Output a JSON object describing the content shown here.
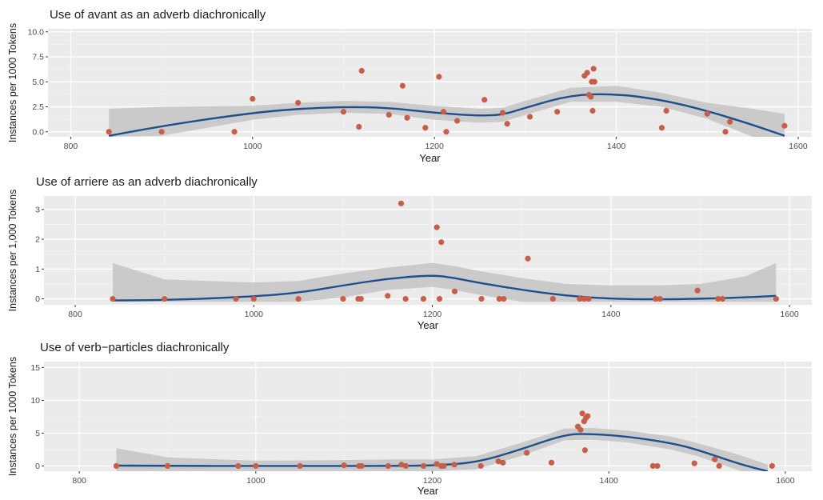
{
  "chart_data": [
    {
      "type": "scatter",
      "title": "Use of avant as an adverb diachronically",
      "xlabel": "Year",
      "ylabel": "Instances per 1000 Tokens",
      "xlim": [
        775,
        1615
      ],
      "ylim": [
        -0.5,
        10.3
      ],
      "xticks": [
        800,
        1000,
        1200,
        1400,
        1600
      ],
      "yticks": [
        0,
        2.5,
        5,
        7.5,
        10
      ],
      "ytick_labels": [
        "0.0",
        "2.5",
        "5.0",
        "7.5",
        "10.0"
      ],
      "grid": true,
      "points": [
        {
          "x": 842,
          "y": 0.0
        },
        {
          "x": 900,
          "y": 0.0
        },
        {
          "x": 980,
          "y": 0.0
        },
        {
          "x": 1000,
          "y": 3.3
        },
        {
          "x": 1050,
          "y": 2.9
        },
        {
          "x": 1100,
          "y": 2.0
        },
        {
          "x": 1117,
          "y": 0.5
        },
        {
          "x": 1120,
          "y": 6.1
        },
        {
          "x": 1150,
          "y": 1.7
        },
        {
          "x": 1165,
          "y": 4.6
        },
        {
          "x": 1170,
          "y": 1.4
        },
        {
          "x": 1190,
          "y": 0.4
        },
        {
          "x": 1205,
          "y": 5.5
        },
        {
          "x": 1210,
          "y": 2.0
        },
        {
          "x": 1213,
          "y": 0.0
        },
        {
          "x": 1225,
          "y": 1.1
        },
        {
          "x": 1255,
          "y": 3.2
        },
        {
          "x": 1275,
          "y": 1.9
        },
        {
          "x": 1280,
          "y": 0.8
        },
        {
          "x": 1305,
          "y": 1.5
        },
        {
          "x": 1335,
          "y": 2.0
        },
        {
          "x": 1365,
          "y": 5.6
        },
        {
          "x": 1368,
          "y": 5.9
        },
        {
          "x": 1370,
          "y": 3.7
        },
        {
          "x": 1372,
          "y": 3.5
        },
        {
          "x": 1373,
          "y": 5.0
        },
        {
          "x": 1375,
          "y": 6.3
        },
        {
          "x": 1376,
          "y": 5.0
        },
        {
          "x": 1374,
          "y": 2.1
        },
        {
          "x": 1450,
          "y": 0.4
        },
        {
          "x": 1455,
          "y": 2.1
        },
        {
          "x": 1500,
          "y": 1.8
        },
        {
          "x": 1520,
          "y": 0.0
        },
        {
          "x": 1525,
          "y": 1.0
        },
        {
          "x": 1585,
          "y": 0.6
        }
      ],
      "smooth": {
        "x": [
          842,
          900,
          1000,
          1050,
          1100,
          1150,
          1200,
          1250,
          1275,
          1300,
          1350,
          1400,
          1450,
          1500,
          1550,
          1585
        ],
        "y": [
          -0.4,
          0.6,
          1.9,
          2.3,
          2.5,
          2.4,
          1.9,
          1.6,
          1.7,
          2.4,
          3.7,
          3.8,
          3.2,
          2.1,
          0.7,
          -0.4
        ]
      },
      "band_upper": [
        2.3,
        2.5,
        2.6,
        2.9,
        3.1,
        3.0,
        2.6,
        2.3,
        2.4,
        3.1,
        4.4,
        4.6,
        3.9,
        2.9,
        2.3,
        1.8
      ],
      "band_lower": [
        -0.5,
        -0.4,
        1.2,
        1.7,
        1.9,
        1.8,
        1.2,
        0.9,
        1.0,
        1.7,
        3.0,
        3.0,
        2.5,
        1.3,
        -0.5,
        -0.5
      ],
      "colors": {
        "points": "#c65f4a",
        "line": "#1e4f8c",
        "band": "#c4c4c4",
        "panel": "#ebebeb",
        "grid": "#ffffff"
      }
    },
    {
      "type": "scatter",
      "title": "Use of arriere as an adverb diachronically",
      "xlabel": "Year",
      "ylabel": "Instances per 1,000 Tokens",
      "xlim": [
        765,
        1625
      ],
      "ylim": [
        -0.2,
        3.45
      ],
      "xticks": [
        800,
        1000,
        1200,
        1400,
        1600
      ],
      "yticks": [
        0,
        1,
        2,
        3
      ],
      "ytick_labels": [
        "0",
        "1",
        "2",
        "3"
      ],
      "grid": true,
      "points": [
        {
          "x": 842,
          "y": 0
        },
        {
          "x": 900,
          "y": 0
        },
        {
          "x": 980,
          "y": 0
        },
        {
          "x": 1000,
          "y": 0
        },
        {
          "x": 1050,
          "y": 0
        },
        {
          "x": 1100,
          "y": 0
        },
        {
          "x": 1117,
          "y": 0
        },
        {
          "x": 1120,
          "y": 0
        },
        {
          "x": 1150,
          "y": 0.1
        },
        {
          "x": 1165,
          "y": 3.2
        },
        {
          "x": 1170,
          "y": 0
        },
        {
          "x": 1190,
          "y": 0
        },
        {
          "x": 1205,
          "y": 2.4
        },
        {
          "x": 1210,
          "y": 1.9
        },
        {
          "x": 1208,
          "y": 0
        },
        {
          "x": 1225,
          "y": 0.25
        },
        {
          "x": 1255,
          "y": 0
        },
        {
          "x": 1275,
          "y": 0
        },
        {
          "x": 1280,
          "y": 0
        },
        {
          "x": 1307,
          "y": 1.35
        },
        {
          "x": 1335,
          "y": 0
        },
        {
          "x": 1365,
          "y": 0
        },
        {
          "x": 1370,
          "y": 0
        },
        {
          "x": 1375,
          "y": 0
        },
        {
          "x": 1450,
          "y": 0
        },
        {
          "x": 1455,
          "y": 0
        },
        {
          "x": 1497,
          "y": 0.28
        },
        {
          "x": 1520,
          "y": 0
        },
        {
          "x": 1525,
          "y": 0
        },
        {
          "x": 1585,
          "y": 0
        }
      ],
      "smooth": {
        "x": [
          842,
          900,
          1000,
          1050,
          1100,
          1150,
          1200,
          1225,
          1250,
          1300,
          1350,
          1400,
          1450,
          1500,
          1550,
          1585
        ],
        "y": [
          -0.05,
          -0.05,
          0.08,
          0.2,
          0.45,
          0.68,
          0.8,
          0.7,
          0.55,
          0.3,
          0.1,
          0,
          -0.02,
          0,
          0.05,
          0.1
        ]
      },
      "band_upper": [
        1.2,
        0.65,
        0.55,
        0.6,
        0.85,
        1.05,
        1.2,
        1.1,
        0.95,
        0.7,
        0.5,
        0.45,
        0.45,
        0.5,
        0.75,
        1.2
      ],
      "band_lower": [
        -0.1,
        -0.1,
        -0.1,
        -0.1,
        0.05,
        0.3,
        0.4,
        0.3,
        0.15,
        -0.1,
        -0.1,
        -0.1,
        -0.1,
        -0.1,
        -0.1,
        -0.1
      ],
      "colors": {
        "points": "#c65f4a",
        "line": "#1e4f8c",
        "band": "#c4c4c4",
        "panel": "#ebebeb",
        "grid": "#ffffff"
      }
    },
    {
      "type": "scatter",
      "title": "Use of verb−particles diachronically",
      "xlabel": "Year",
      "ylabel": "Instances per 1000 Tokens",
      "xlim": [
        760,
        1630
      ],
      "ylim": [
        -0.8,
        15.9
      ],
      "xticks": [
        800,
        1000,
        1200,
        1400,
        1600
      ],
      "yticks": [
        0,
        5,
        10,
        15
      ],
      "ytick_labels": [
        "0",
        "5",
        "10",
        "15"
      ],
      "grid": true,
      "points": [
        {
          "x": 842,
          "y": 0
        },
        {
          "x": 900,
          "y": 0
        },
        {
          "x": 980,
          "y": 0
        },
        {
          "x": 1000,
          "y": 0
        },
        {
          "x": 1050,
          "y": 0
        },
        {
          "x": 1100,
          "y": 0.1
        },
        {
          "x": 1117,
          "y": 0
        },
        {
          "x": 1120,
          "y": 0
        },
        {
          "x": 1150,
          "y": 0
        },
        {
          "x": 1165,
          "y": 0.2
        },
        {
          "x": 1170,
          "y": 0
        },
        {
          "x": 1190,
          "y": 0
        },
        {
          "x": 1205,
          "y": 0.3
        },
        {
          "x": 1210,
          "y": 0
        },
        {
          "x": 1213,
          "y": 0
        },
        {
          "x": 1225,
          "y": 0.2
        },
        {
          "x": 1255,
          "y": 0
        },
        {
          "x": 1275,
          "y": 0.7
        },
        {
          "x": 1280,
          "y": 0.5
        },
        {
          "x": 1307,
          "y": 2.0
        },
        {
          "x": 1335,
          "y": 0.5
        },
        {
          "x": 1365,
          "y": 6.0
        },
        {
          "x": 1368,
          "y": 5.5
        },
        {
          "x": 1370,
          "y": 8.0
        },
        {
          "x": 1372,
          "y": 6.8
        },
        {
          "x": 1374,
          "y": 7.3
        },
        {
          "x": 1376,
          "y": 7.6
        },
        {
          "x": 1373,
          "y": 2.4
        },
        {
          "x": 1450,
          "y": 0
        },
        {
          "x": 1455,
          "y": 0
        },
        {
          "x": 1497,
          "y": 0.4
        },
        {
          "x": 1520,
          "y": 1.0
        },
        {
          "x": 1525,
          "y": 0
        },
        {
          "x": 1585,
          "y": 0
        }
      ],
      "smooth": {
        "x": [
          842,
          900,
          1000,
          1100,
          1150,
          1200,
          1250,
          1300,
          1350,
          1380,
          1420,
          1470,
          1500,
          1550,
          1580
        ],
        "y": [
          0.05,
          0,
          0,
          0,
          0,
          0.05,
          0.5,
          2.5,
          4.8,
          4.9,
          4.5,
          3.5,
          2.5,
          0.2,
          -0.8
        ]
      },
      "band_upper": [
        2.7,
        1.3,
        0.8,
        0.9,
        1.0,
        1.0,
        1.5,
        3.5,
        5.7,
        5.8,
        5.4,
        4.5,
        3.5,
        1.6,
        0.2
      ],
      "band_lower": [
        -0.8,
        -0.8,
        -0.8,
        -0.8,
        -0.8,
        -0.8,
        -0.5,
        1.5,
        3.9,
        4.0,
        3.6,
        2.5,
        1.5,
        -0.8,
        -0.8
      ],
      "colors": {
        "points": "#c65f4a",
        "line": "#1e4f8c",
        "band": "#c4c4c4",
        "panel": "#ebebeb",
        "grid": "#ffffff"
      }
    }
  ]
}
